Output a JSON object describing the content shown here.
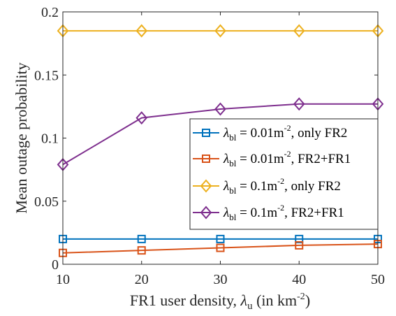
{
  "chart_data": {
    "type": "line",
    "xlabel": {
      "prefix": "FR1 user density, ",
      "symbol": "λ",
      "sub": "u",
      "mid": " (in km",
      "sup": "-2",
      "suffix": ")"
    },
    "ylabel": "Mean outage probability",
    "xlim": [
      10,
      50
    ],
    "ylim": [
      0,
      0.2
    ],
    "x": [
      10,
      20,
      30,
      40,
      50
    ],
    "x_ticks": [
      "10",
      "20",
      "30",
      "40",
      "50"
    ],
    "y_ticks": [
      "0",
      "0.05",
      "0.1",
      "0.15",
      "0.2"
    ],
    "y_tick_values": [
      0,
      0.05,
      0.1,
      0.15,
      0.2
    ],
    "grid": false,
    "legend_position": "right",
    "series": [
      {
        "legend": {
          "symbol": "λ",
          "sub": "bl",
          "eq": " = 0.01m",
          "sup": "-2",
          "rest": ", only FR2"
        },
        "values": [
          0.02,
          0.02,
          0.02,
          0.02,
          0.02
        ],
        "color": "#0072BD",
        "marker": "square"
      },
      {
        "legend": {
          "symbol": "λ",
          "sub": "bl",
          "eq": " = 0.01m",
          "sup": "-2",
          "rest": ", FR2+FR1"
        },
        "values": [
          0.009,
          0.011,
          0.013,
          0.015,
          0.016
        ],
        "color": "#D95319",
        "marker": "square"
      },
      {
        "legend": {
          "symbol": "λ",
          "sub": "bl",
          "eq": " = 0.1m",
          "sup": "-2",
          "rest": ", only FR2"
        },
        "values": [
          0.185,
          0.185,
          0.185,
          0.185,
          0.185
        ],
        "color": "#EDB120",
        "marker": "diamond"
      },
      {
        "legend": {
          "symbol": "λ",
          "sub": "bl",
          "eq": " = 0.1m",
          "sup": "-2",
          "rest": ", FR2+FR1"
        },
        "values": [
          0.079,
          0.116,
          0.123,
          0.127,
          0.127
        ],
        "color": "#7E2F8E",
        "marker": "diamond"
      }
    ]
  }
}
